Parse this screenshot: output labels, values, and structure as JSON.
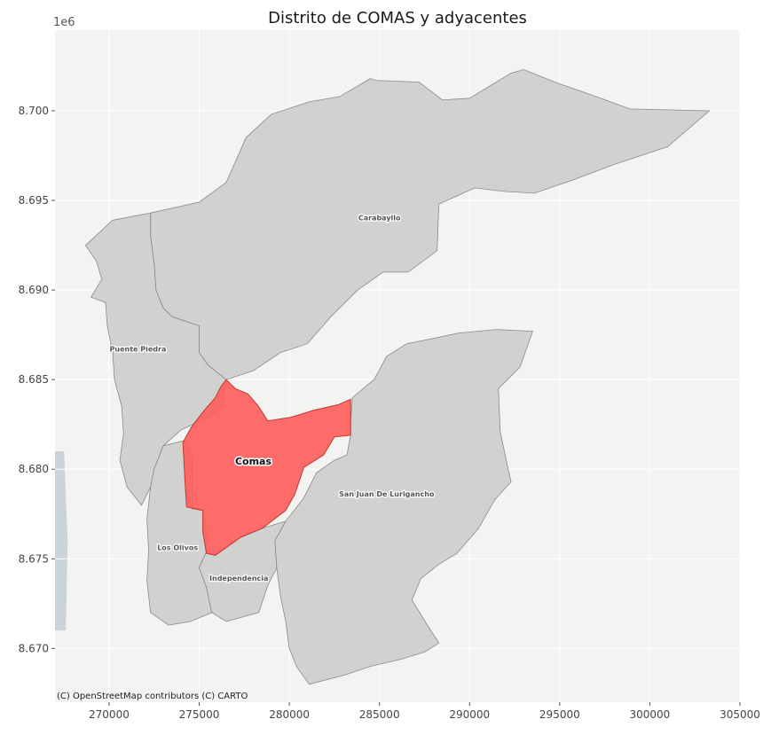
{
  "title": "Distrito de COMAS y adyacentes",
  "y_offset_label": "1e6",
  "attribution": "(C) OpenStreetMap contributors (C) CARTO",
  "colors": {
    "basemap": "#f3f3f1",
    "district_fill": "#c8c8c8",
    "district_edge": "#8a8a8a",
    "highlight_fill": "#ff5c5c",
    "highlight_edge": "#c0392b",
    "grid": "#ffffff",
    "river": "#c9d3d8"
  },
  "axes": {
    "xlim": [
      267000,
      305000
    ],
    "ylim": [
      8667000,
      8704500
    ],
    "x_ticks": [
      "270000",
      "275000",
      "280000",
      "285000",
      "290000",
      "295000",
      "300000",
      "305000"
    ],
    "y_ticks": [
      "8.670",
      "8.675",
      "8.680",
      "8.685",
      "8.690",
      "8.695",
      "8.700"
    ]
  },
  "districts": [
    {
      "name": "Carabayllo",
      "highlight": false,
      "label_at": [
        285000,
        8694000
      ],
      "boundary": [
        [
          272300,
          8694300
        ],
        [
          275000,
          8694900
        ],
        [
          276500,
          8696000
        ],
        [
          277600,
          8698500
        ],
        [
          279000,
          8699800
        ],
        [
          281100,
          8700500
        ],
        [
          282800,
          8700800
        ],
        [
          284500,
          8701800
        ],
        [
          284800,
          8701700
        ],
        [
          287200,
          8701600
        ],
        [
          288500,
          8700600
        ],
        [
          290000,
          8700700
        ],
        [
          292300,
          8702100
        ],
        [
          293000,
          8702300
        ],
        [
          295000,
          8701500
        ],
        [
          297000,
          8700800
        ],
        [
          298900,
          8700100
        ],
        [
          303300,
          8700000
        ],
        [
          301000,
          8698000
        ],
        [
          298000,
          8697000
        ],
        [
          295900,
          8696200
        ],
        [
          293600,
          8695400
        ],
        [
          291900,
          8695500
        ],
        [
          290300,
          8695700
        ],
        [
          288300,
          8694800
        ],
        [
          288200,
          8692200
        ],
        [
          286600,
          8691000
        ],
        [
          285200,
          8691000
        ],
        [
          283800,
          8690000
        ],
        [
          282300,
          8688500
        ],
        [
          281000,
          8687000
        ],
        [
          279500,
          8686500
        ],
        [
          278000,
          8685500
        ],
        [
          276500,
          8685000
        ],
        [
          275500,
          8685800
        ],
        [
          275000,
          8686500
        ],
        [
          275000,
          8688000
        ],
        [
          273500,
          8688500
        ],
        [
          273000,
          8689000
        ],
        [
          272600,
          8690000
        ],
        [
          272500,
          8691500
        ],
        [
          272300,
          8693000
        ]
      ]
    },
    {
      "name": "Puente Piedra",
      "highlight": false,
      "label_at": [
        271600,
        8686700
      ],
      "boundary": [
        [
          268700,
          8692500
        ],
        [
          270200,
          8693900
        ],
        [
          272300,
          8694300
        ],
        [
          272300,
          8693000
        ],
        [
          272500,
          8691500
        ],
        [
          272600,
          8690000
        ],
        [
          273000,
          8689000
        ],
        [
          273500,
          8688500
        ],
        [
          275000,
          8688000
        ],
        [
          275000,
          8686500
        ],
        [
          275500,
          8685800
        ],
        [
          276500,
          8685000
        ],
        [
          276300,
          8683500
        ],
        [
          275500,
          8682900
        ],
        [
          274000,
          8682200
        ],
        [
          273000,
          8681300
        ],
        [
          272500,
          8680000
        ],
        [
          272300,
          8679000
        ],
        [
          271800,
          8678000
        ],
        [
          271000,
          8679000
        ],
        [
          270600,
          8680500
        ],
        [
          270800,
          8682000
        ],
        [
          270700,
          8683500
        ],
        [
          270300,
          8685000
        ],
        [
          270200,
          8686500
        ],
        [
          269900,
          8688000
        ],
        [
          269800,
          8689300
        ],
        [
          269000,
          8689600
        ],
        [
          269600,
          8690600
        ],
        [
          269300,
          8691600
        ]
      ]
    },
    {
      "name": "Los Olivos",
      "highlight": false,
      "label_at": [
        273800,
        8675600
      ],
      "boundary": [
        [
          272300,
          8679000
        ],
        [
          272500,
          8680000
        ],
        [
          273000,
          8681300
        ],
        [
          274200,
          8681600
        ],
        [
          274600,
          8680700
        ],
        [
          274600,
          8677800
        ],
        [
          275200,
          8677700
        ],
        [
          275400,
          8676500
        ],
        [
          275400,
          8675400
        ],
        [
          275000,
          8674500
        ],
        [
          275400,
          8673400
        ],
        [
          275700,
          8672000
        ],
        [
          274500,
          8671500
        ],
        [
          273300,
          8671300
        ],
        [
          272300,
          8672000
        ],
        [
          272100,
          8673800
        ],
        [
          272200,
          8675500
        ],
        [
          272100,
          8677200
        ]
      ]
    },
    {
      "name": "Independencia",
      "highlight": false,
      "label_at": [
        277200,
        8673900
      ],
      "boundary": [
        [
          275700,
          8672000
        ],
        [
          276500,
          8671500
        ],
        [
          278300,
          8672000
        ],
        [
          278800,
          8673500
        ],
        [
          279300,
          8674500
        ],
        [
          279200,
          8676000
        ],
        [
          279800,
          8677100
        ],
        [
          278500,
          8676700
        ],
        [
          277300,
          8676200
        ],
        [
          276000,
          8675400
        ],
        [
          275400,
          8675400
        ],
        [
          275000,
          8674500
        ],
        [
          275400,
          8673400
        ]
      ]
    },
    {
      "name": "San Juan De Lurigancho",
      "highlight": false,
      "label_at": [
        285400,
        8678600
      ],
      "boundary": [
        [
          283500,
          8684000
        ],
        [
          283400,
          8682600
        ],
        [
          283400,
          8681900
        ],
        [
          283200,
          8680800
        ],
        [
          282500,
          8680500
        ],
        [
          281500,
          8679800
        ],
        [
          280800,
          8678400
        ],
        [
          279800,
          8677100
        ],
        [
          279200,
          8676000
        ],
        [
          279300,
          8674500
        ],
        [
          279500,
          8673000
        ],
        [
          279800,
          8671500
        ],
        [
          280000,
          8670000
        ],
        [
          280400,
          8669000
        ],
        [
          281100,
          8668000
        ],
        [
          283000,
          8668500
        ],
        [
          284500,
          8669000
        ],
        [
          286200,
          8669400
        ],
        [
          287500,
          8669800
        ],
        [
          288300,
          8670300
        ],
        [
          287600,
          8671400
        ],
        [
          286800,
          8672700
        ],
        [
          287300,
          8673900
        ],
        [
          288300,
          8674700
        ],
        [
          289300,
          8675300
        ],
        [
          290500,
          8676700
        ],
        [
          291400,
          8678300
        ],
        [
          292300,
          8679300
        ],
        [
          292100,
          8680200
        ],
        [
          291700,
          8682100
        ],
        [
          291600,
          8684500
        ],
        [
          292800,
          8685700
        ],
        [
          293500,
          8687700
        ],
        [
          291500,
          8687800
        ],
        [
          289400,
          8687600
        ],
        [
          288000,
          8687300
        ],
        [
          286500,
          8687000
        ],
        [
          285400,
          8686300
        ],
        [
          284700,
          8685000
        ]
      ]
    },
    {
      "name": "Comas",
      "highlight": true,
      "label_at": [
        278000,
        8680400
      ],
      "boundary": [
        [
          276500,
          8685000
        ],
        [
          277000,
          8684500
        ],
        [
          277700,
          8684200
        ],
        [
          278300,
          8683500
        ],
        [
          278800,
          8682700
        ],
        [
          280100,
          8682900
        ],
        [
          281400,
          8683300
        ],
        [
          282700,
          8683600
        ],
        [
          283400,
          8683900
        ],
        [
          283400,
          8682600
        ],
        [
          283400,
          8681900
        ],
        [
          282500,
          8681800
        ],
        [
          281900,
          8680800
        ],
        [
          280800,
          8680100
        ],
        [
          280300,
          8678600
        ],
        [
          279800,
          8677700
        ],
        [
          278500,
          8676700
        ],
        [
          277300,
          8676200
        ],
        [
          275900,
          8675200
        ],
        [
          275400,
          8675300
        ],
        [
          275200,
          8676500
        ],
        [
          275200,
          8677700
        ],
        [
          274300,
          8677900
        ],
        [
          274200,
          8679500
        ],
        [
          274100,
          8681500
        ],
        [
          274600,
          8682400
        ],
        [
          275300,
          8683300
        ],
        [
          275900,
          8684000
        ],
        [
          276200,
          8684600
        ]
      ]
    }
  ]
}
